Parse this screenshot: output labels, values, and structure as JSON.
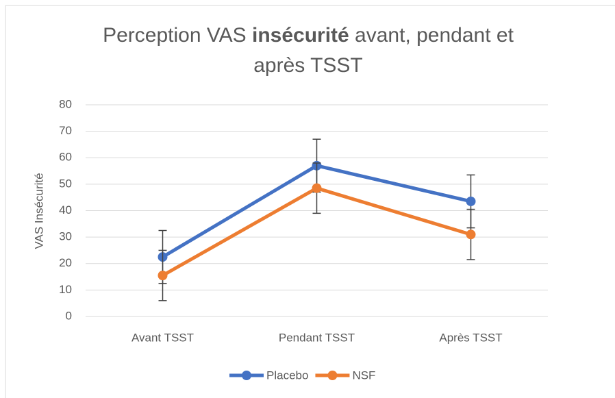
{
  "chart_data": {
    "type": "line",
    "title": [
      {
        "text": "Perception VAS "
      },
      {
        "text": "insécurité",
        "bold": true
      },
      {
        "text": " avant, pendant et après TSST"
      }
    ],
    "y_label": "VAS Insécurité",
    "categories": [
      "Avant TSST",
      "Pendant TSST",
      "Après TSST"
    ],
    "series": [
      {
        "name": "Placebo",
        "color": "#4472c4",
        "values": [
          22.5,
          57,
          43.5
        ],
        "errors": [
          10,
          10,
          10
        ]
      },
      {
        "name": "NSF",
        "color": "#ed7d31",
        "values": [
          15.5,
          48.5,
          31
        ],
        "errors": [
          9.5,
          9.5,
          9.5
        ]
      }
    ],
    "ylim": [
      0,
      80
    ],
    "yticks": [
      0,
      10,
      20,
      30,
      40,
      50,
      60,
      70,
      80
    ],
    "grid": true,
    "legend": "bottom"
  }
}
